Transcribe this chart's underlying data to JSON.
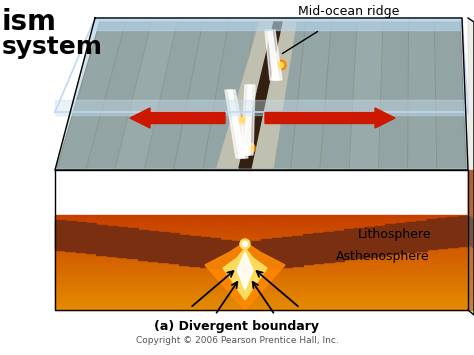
{
  "title": "(a) Divergent boundary",
  "copyright": "Copyright © 2006 Pearson Prentice Hall, Inc.",
  "label_mid_ocean_ridge": "Mid-ocean ridge",
  "label_lithosphere": "Lithosphere",
  "label_asthenosphere": "Asthenosphere",
  "label_ism": "ism",
  "label_system": "system",
  "bg_color": "#ffffff",
  "ocean_blue_top": "#7aaec8",
  "ocean_blue_side": "#a8c4d8",
  "rock_gray_light": "#b8b8a8",
  "rock_gray_dark": "#888878",
  "rock_gray_mid": "#a0a090",
  "lithosphere_dark": "#5a2008",
  "lithosphere_mid": "#7a3010",
  "lithosphere_light": "#9a4818",
  "asthenosphere_dark": "#c84000",
  "asthenosphere_mid": "#e86820",
  "asthenosphere_light": "#f0a040",
  "arrow_red": "#cc1800",
  "lava_white": "#ffffff",
  "lava_yellow": "#ffe060",
  "lava_orange": "#ff8800",
  "lava_red": "#cc3300",
  "magma_glow": "#ffdd88"
}
